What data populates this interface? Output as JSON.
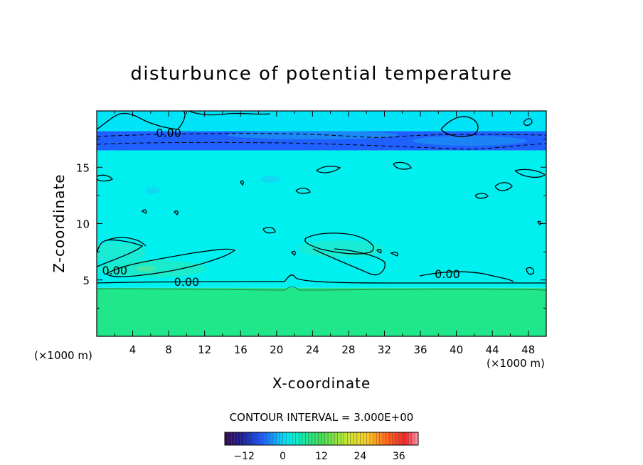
{
  "chart_data": {
    "type": "heatmap",
    "title": "disturbunce of potential temperature",
    "xlabel": "X-coordinate",
    "ylabel": "Z-coordinate",
    "x_unit_label": "(×1000 m)",
    "y_unit_label": "(×1000 m)",
    "xlim": [
      0,
      50
    ],
    "ylim": [
      0,
      20
    ],
    "x_ticks": [
      "4",
      "8",
      "12",
      "16",
      "20",
      "24",
      "28",
      "32",
      "36",
      "40",
      "44",
      "48"
    ],
    "y_ticks": [
      "5",
      "10",
      "15"
    ],
    "contour_labels": [
      {
        "text": "0.00",
        "x": 8,
        "z": 18.0
      },
      {
        "text": "0.00",
        "x": 2,
        "z": 5.8
      },
      {
        "text": "0.00",
        "x": 10,
        "z": 4.8
      },
      {
        "text": "0.00",
        "x": 39,
        "z": 5.5
      }
    ],
    "contour_interval_label": "CONTOUR INTERVAL = 3.000E+00",
    "colorbar": {
      "range": [
        -18,
        42
      ],
      "ticks": [
        "−12",
        "0",
        "12",
        "24",
        "36"
      ],
      "tick_values": [
        -12,
        0,
        12,
        24,
        36
      ]
    },
    "field_description_bands": [
      {
        "z_range": [
          0,
          4.3
        ],
        "value": 8
      },
      {
        "z_range": [
          4.3,
          16.5
        ],
        "value": 2
      },
      {
        "z_range": [
          16.5,
          18.2
        ],
        "value": -6
      },
      {
        "z_range": [
          18.2,
          20
        ],
        "value": 1
      }
    ]
  }
}
